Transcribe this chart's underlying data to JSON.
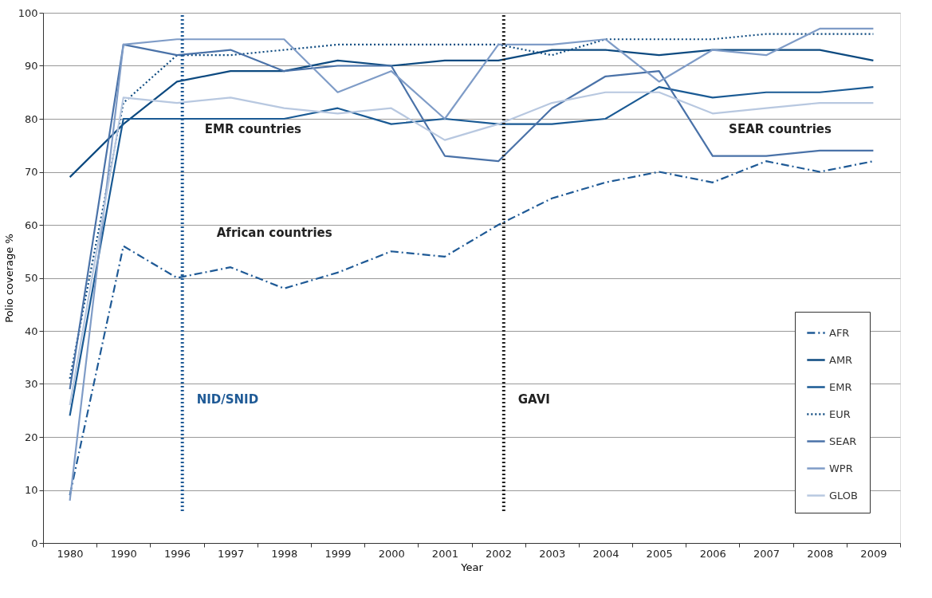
{
  "chart_data": {
    "type": "line",
    "xlabel": "Year",
    "ylabel": "Polio coverage %",
    "categories": [
      "1980",
      "1990",
      "1996",
      "1997",
      "1998",
      "1999",
      "2000",
      "2001",
      "2002",
      "2003",
      "2004",
      "2005",
      "2006",
      "2007",
      "2008",
      "2009"
    ],
    "series": [
      {
        "name": "AFR",
        "color": "#1f5a96",
        "line_style": "dashdot",
        "values": [
          9,
          56,
          50,
          52,
          48,
          51,
          55,
          54,
          60,
          65,
          68,
          70,
          68,
          72,
          70,
          72
        ]
      },
      {
        "name": "AMR",
        "color": "#0d4a80",
        "line_style": "solid",
        "values": [
          69,
          79,
          87,
          89,
          89,
          91,
          90,
          91,
          91,
          93,
          93,
          92,
          93,
          93,
          93,
          91
        ]
      },
      {
        "name": "EMR",
        "color": "#1a5a94",
        "line_style": "solid",
        "values": [
          24,
          80,
          80,
          80,
          80,
          82,
          79,
          80,
          79,
          79,
          80,
          86,
          84,
          85,
          85,
          86
        ]
      },
      {
        "name": "EUR",
        "color": "#0d4a80",
        "line_style": "dotted",
        "values": [
          31,
          83,
          92,
          92,
          93,
          94,
          94,
          94,
          94,
          92,
          95,
          95,
          95,
          96,
          96,
          96
        ]
      },
      {
        "name": "SEAR",
        "color": "#4a72a8",
        "line_style": "solid",
        "values": [
          29,
          94,
          92,
          93,
          89,
          90,
          90,
          73,
          72,
          82,
          88,
          89,
          73,
          73,
          74,
          74
        ]
      },
      {
        "name": "WPR",
        "color": "#7f9cc7",
        "line_style": "solid",
        "values": [
          8,
          94,
          95,
          95,
          95,
          85,
          89,
          80,
          94,
          94,
          95,
          87,
          93,
          92,
          97,
          97
        ]
      },
      {
        "name": "GLOB",
        "color": "#b8c8e0",
        "line_style": "solid",
        "values": [
          26,
          84,
          83,
          84,
          82,
          81,
          82,
          76,
          79,
          83,
          85,
          85,
          81,
          82,
          83,
          83
        ]
      }
    ],
    "ylim": [
      0,
      100
    ],
    "yticks": [
      0,
      10,
      20,
      30,
      40,
      50,
      60,
      70,
      80,
      90,
      100
    ],
    "grid": "y",
    "legend": "bottom right",
    "ref_lines": [
      {
        "axis": "x",
        "value": "1996",
        "label": "NID/SNID",
        "color": "#1f5a96",
        "line_style": "dotted"
      },
      {
        "axis": "x",
        "value": "2002",
        "label": "GAVI",
        "color": "#222222",
        "line_style": "dotted"
      }
    ],
    "annotations": [
      "EMR countries",
      "African countries",
      "SEAR countries"
    ]
  }
}
